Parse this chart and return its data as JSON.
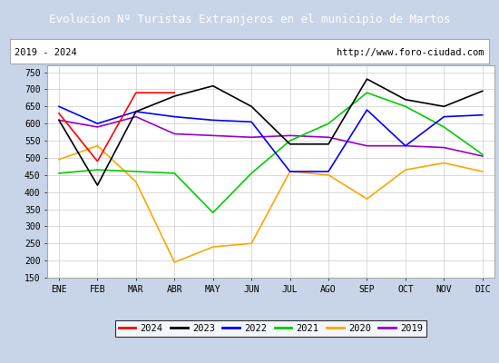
{
  "title": "Evolucion Nº Turistas Extranjeros en el municipio de Martos",
  "subtitle_left": "2019 - 2024",
  "subtitle_right": "http://www.foro-ciudad.com",
  "title_bg_color": "#4472C4",
  "title_text_color": "#FFFFFF",
  "months": [
    "ENE",
    "FEB",
    "MAR",
    "ABR",
    "MAY",
    "JUN",
    "JUL",
    "AGO",
    "SEP",
    "OCT",
    "NOV",
    "DIC"
  ],
  "ylim": [
    150,
    770
  ],
  "yticks": [
    150,
    200,
    250,
    300,
    350,
    400,
    450,
    500,
    550,
    600,
    650,
    700,
    750
  ],
  "series": {
    "2024": {
      "color": "#FF0000",
      "data": [
        630,
        490,
        690,
        690,
        null,
        null,
        null,
        null,
        null,
        null,
        null,
        null
      ]
    },
    "2023": {
      "color": "#000000",
      "data": [
        610,
        420,
        635,
        680,
        710,
        650,
        540,
        540,
        730,
        670,
        650,
        695
      ]
    },
    "2022": {
      "color": "#0000FF",
      "data": [
        650,
        600,
        635,
        620,
        610,
        605,
        460,
        460,
        640,
        535,
        620,
        625
      ]
    },
    "2021": {
      "color": "#00CC00",
      "data": [
        455,
        465,
        460,
        455,
        340,
        455,
        550,
        600,
        690,
        650,
        590,
        510
      ]
    },
    "2020": {
      "color": "#FFA500",
      "data": [
        495,
        535,
        430,
        195,
        240,
        250,
        460,
        450,
        380,
        465,
        485,
        460
      ]
    },
    "2019": {
      "color": "#9900CC",
      "data": [
        610,
        590,
        620,
        570,
        565,
        560,
        565,
        560,
        535,
        535,
        530,
        505
      ]
    }
  },
  "legend_order": [
    "2024",
    "2023",
    "2022",
    "2021",
    "2020",
    "2019"
  ],
  "grid_color": "#CCCCCC",
  "plot_bg_color": "#FFFFFF",
  "outer_bg_color": "#C8D4E8",
  "title_font_size": 9,
  "tick_font_size": 7,
  "subtitle_font_size": 7.5
}
